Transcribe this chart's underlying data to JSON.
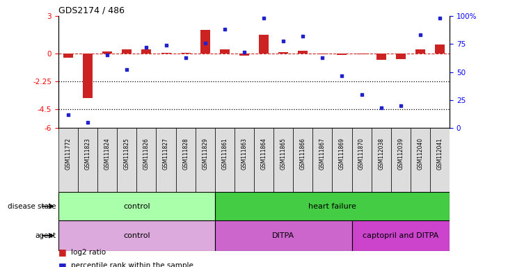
{
  "title": "GDS2174 / 486",
  "samples": [
    "GSM111772",
    "GSM111823",
    "GSM111824",
    "GSM111825",
    "GSM111826",
    "GSM111827",
    "GSM111828",
    "GSM111829",
    "GSM111861",
    "GSM111863",
    "GSM111864",
    "GSM111865",
    "GSM111866",
    "GSM111867",
    "GSM111869",
    "GSM111870",
    "GSM112038",
    "GSM112039",
    "GSM112040",
    "GSM112041"
  ],
  "log2_ratio": [
    -0.35,
    -3.6,
    0.15,
    0.3,
    0.35,
    0.05,
    0.05,
    1.9,
    0.35,
    -0.2,
    1.5,
    0.1,
    0.2,
    -0.05,
    -0.1,
    -0.05,
    -0.5,
    -0.45,
    0.3,
    0.7
  ],
  "percentile": [
    12,
    5,
    65,
    52,
    72,
    74,
    63,
    76,
    88,
    68,
    98,
    78,
    82,
    63,
    47,
    30,
    18,
    20,
    83,
    98
  ],
  "disease_state_groups": [
    {
      "label": "control",
      "start": 0,
      "end": 8,
      "color": "#aaffaa"
    },
    {
      "label": "heart failure",
      "start": 8,
      "end": 20,
      "color": "#44cc44"
    }
  ],
  "agent_groups": [
    {
      "label": "control",
      "start": 0,
      "end": 8,
      "color": "#ddaadd"
    },
    {
      "label": "DITPA",
      "start": 8,
      "end": 15,
      "color": "#cc66cc"
    },
    {
      "label": "captopril and DITPA",
      "start": 15,
      "end": 20,
      "color": "#cc44cc"
    }
  ],
  "ylim_left": [
    -6,
    3
  ],
  "ylim_right": [
    0,
    100
  ],
  "yticks_left": [
    3,
    0,
    -2.25,
    -4.5,
    -6
  ],
  "yticks_right": [
    100,
    75,
    50,
    25,
    0
  ],
  "bar_color": "#CC2222",
  "scatter_color": "#2222CC",
  "dashed_line_color": "#CC2222",
  "background_color": "#FFFFFF",
  "sample_box_color": "#DDDDDD"
}
